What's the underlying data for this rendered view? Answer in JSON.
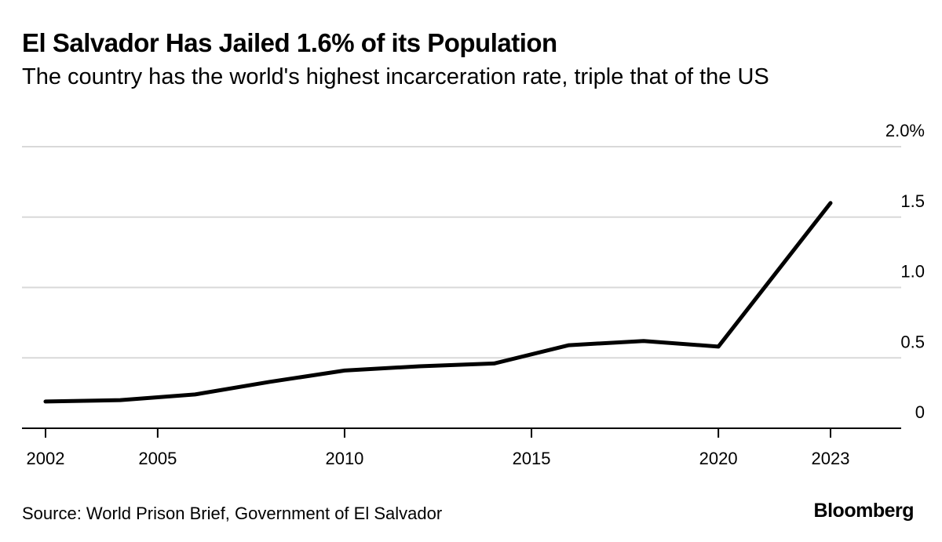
{
  "header": {
    "title": "El Salvador Has Jailed 1.6% of its Population",
    "subtitle": "The country has the world's highest incarceration rate, triple that of the US"
  },
  "footer": {
    "source": "Source: World Prison Brief, Government of El Salvador",
    "brand": "Bloomberg"
  },
  "chart_data": {
    "type": "line",
    "title": "El Salvador Has Jailed 1.6% of its Population",
    "subtitle": "The country has the world's highest incarceration rate, triple that of the US",
    "xlabel": "",
    "ylabel": "",
    "x": [
      2002,
      2004,
      2006,
      2008,
      2010,
      2012,
      2014,
      2016,
      2018,
      2020,
      2023
    ],
    "series": [
      {
        "values": [
          0.19,
          0.2,
          0.24,
          0.33,
          0.41,
          0.44,
          0.46,
          0.59,
          0.62,
          0.58,
          1.6
        ],
        "color": "#000000"
      }
    ],
    "xticks": [
      2002,
      2005,
      2010,
      2015,
      2020,
      2023
    ],
    "xtick_labels": [
      "2002",
      "2005",
      "2010",
      "2015",
      "2020",
      "2023"
    ],
    "yticks": [
      0,
      0.5,
      1.0,
      1.5,
      2.0
    ],
    "ytick_labels": [
      "0",
      "0.5",
      "1.0",
      "1.5",
      "2.0%"
    ],
    "xlim": [
      2002,
      2023
    ],
    "ylim": [
      0,
      2.0
    ],
    "grid": true,
    "y_axis_side": "right",
    "colors": {
      "line": "#000000",
      "grid": "#d9d9d9",
      "axis": "#000000"
    }
  }
}
